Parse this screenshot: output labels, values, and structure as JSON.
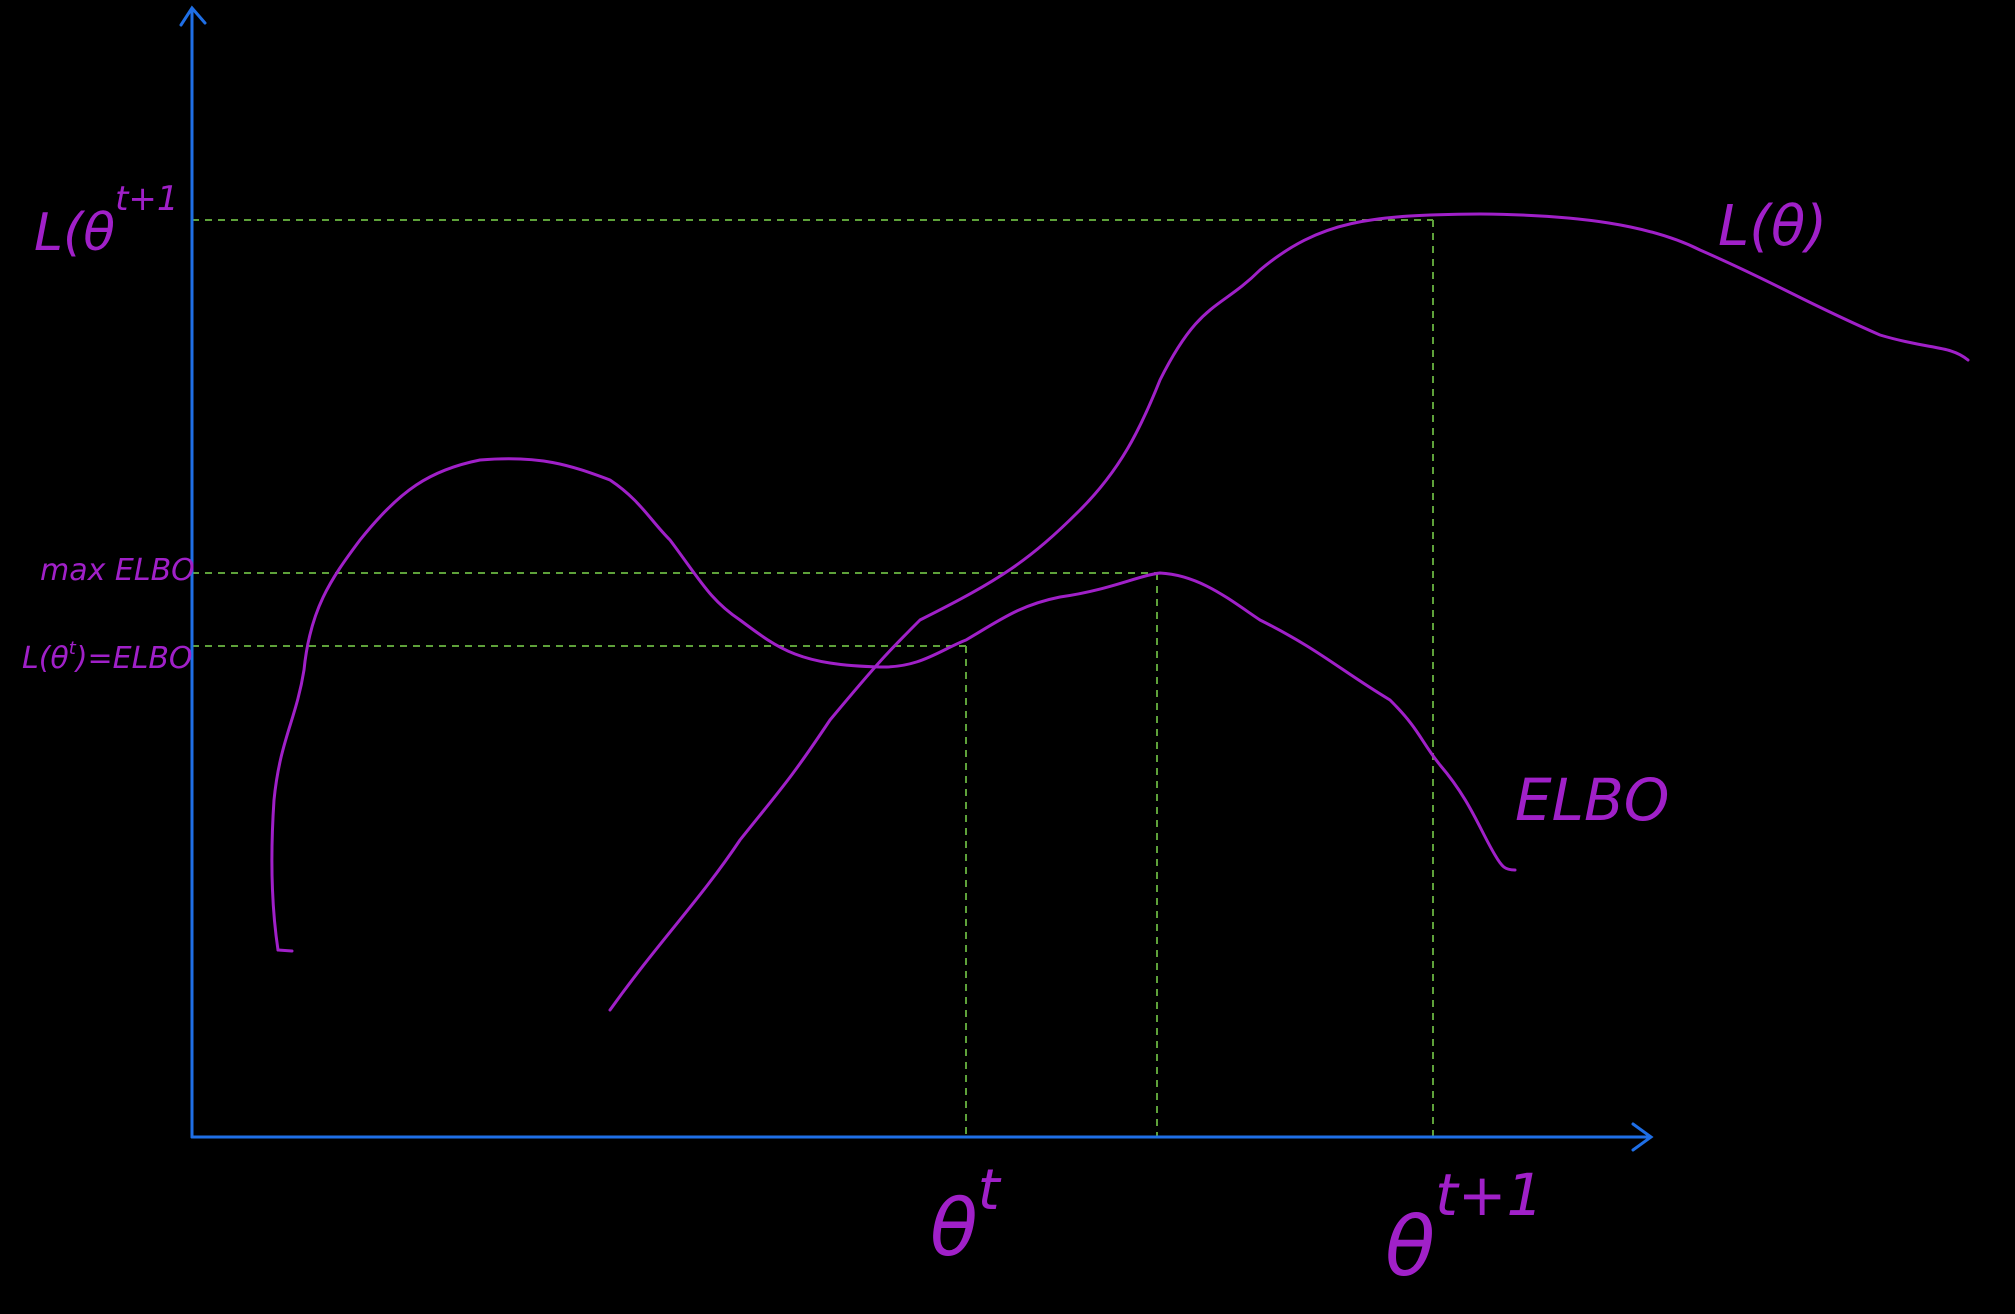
{
  "labels": {
    "y_l_theta_t1": "L(θ",
    "y_l_theta_t1_sup": "t+1",
    "y_max_elbo": "max ELBO",
    "y_l_theta_t_eq_elbo": "L(θ",
    "y_l_theta_t_eq_elbo_sup": "t",
    "y_l_theta_t_eq_elbo_tail": ")=ELBO",
    "curve_l_theta": "L(θ)",
    "curve_elbo": "ELBO",
    "x_theta_t": "θ",
    "x_theta_t_sup": "t",
    "x_theta_t1": "θ",
    "x_theta_t1_sup": "t+1"
  },
  "colors": {
    "background": "#000000",
    "axis": "#1f6fe6",
    "curve": "#a020c8",
    "guide": "#5ea23a",
    "label": "#a020c8"
  }
}
